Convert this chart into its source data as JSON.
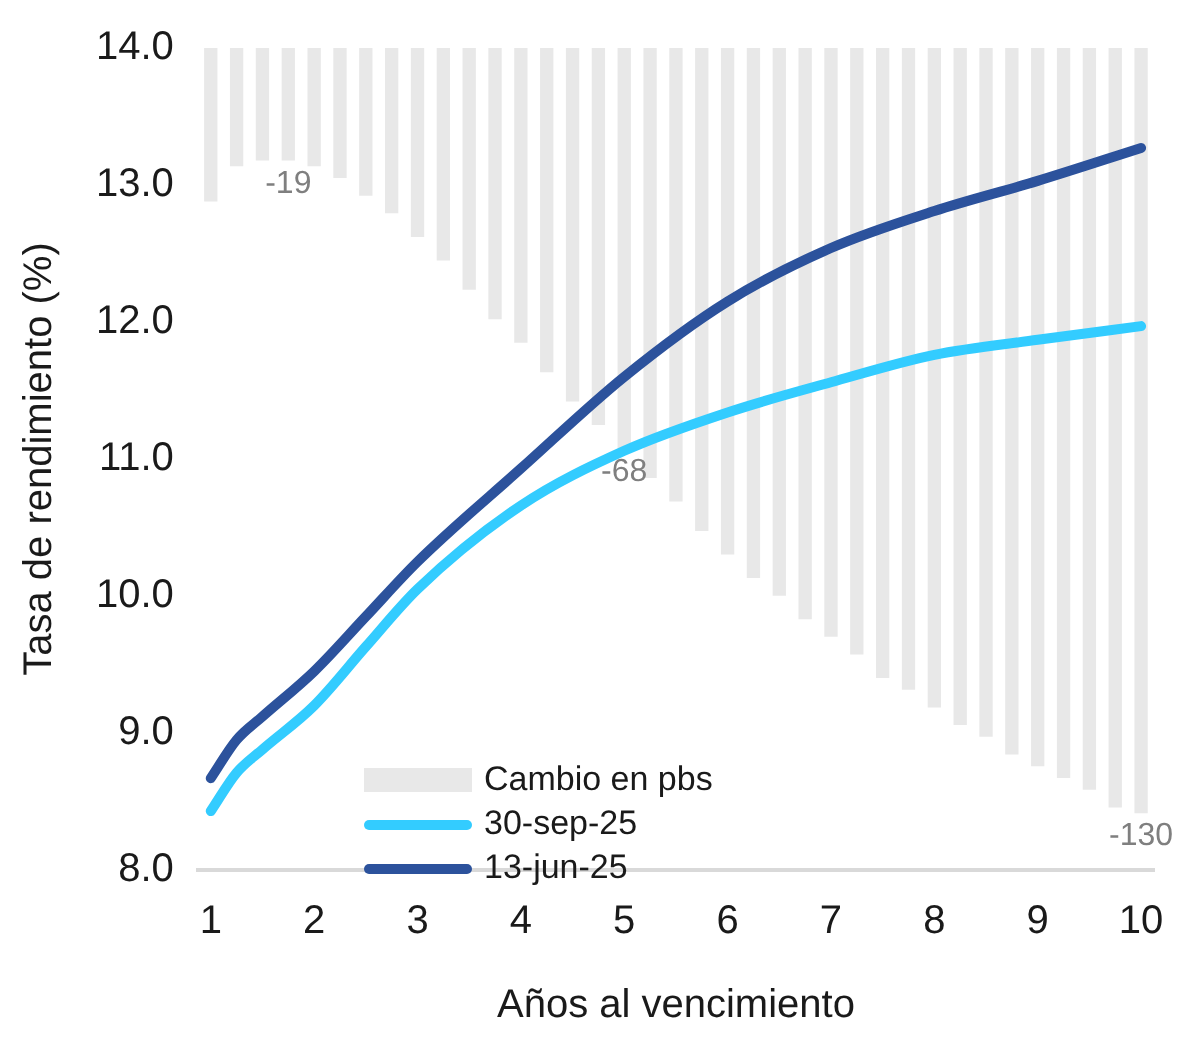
{
  "chart_data": {
    "type": "line",
    "xlabel": "Años al vencimiento",
    "ylabel": "Tasa de rendimiento (%)",
    "xlim": [
      0.875,
      10.125
    ],
    "xticks": [
      1,
      2,
      3,
      4,
      5,
      6,
      7,
      8,
      9,
      10
    ],
    "ylim": [
      8,
      14
    ],
    "yticks": [
      {
        "value": 8,
        "label": "8.0"
      },
      {
        "value": 9,
        "label": "9.0"
      },
      {
        "value": 10,
        "label": "10.0"
      },
      {
        "value": 11,
        "label": "11.0"
      },
      {
        "value": 12,
        "label": "12.0"
      },
      {
        "value": 13,
        "label": "13.0"
      },
      {
        "value": 14,
        "label": "14.0"
      }
    ],
    "grid": false,
    "legend": "bottom left",
    "series": [
      {
        "name": "Cambio en pbs",
        "type": "bar",
        "axis": "y2",
        "color": "#e8e8e8",
        "x": [
          1,
          1.25,
          1.5,
          1.75,
          2,
          2.25,
          2.5,
          2.75,
          3,
          3.25,
          3.5,
          3.75,
          4,
          4.25,
          4.5,
          4.75,
          5,
          5.25,
          5.5,
          5.75,
          6,
          6.25,
          6.5,
          6.75,
          7,
          7.25,
          7.5,
          7.75,
          8,
          8.25,
          8.5,
          8.75,
          9,
          9.25,
          9.5,
          9.75,
          10
        ],
        "values": [
          -26,
          -20,
          -19,
          -19,
          -20,
          -22,
          -25,
          -28,
          -32,
          -36,
          -41,
          -46,
          -50,
          -55,
          -60,
          -64,
          -68,
          -73,
          -77,
          -82,
          -86,
          -90,
          -93,
          -97,
          -100,
          -103,
          -107,
          -109,
          -112,
          -115,
          -117,
          -120,
          -122,
          -124,
          -126,
          -129,
          -130
        ],
        "value_labels": [
          null,
          null,
          null,
          "-19",
          null,
          null,
          null,
          null,
          null,
          null,
          null,
          null,
          null,
          null,
          null,
          null,
          "-68",
          null,
          null,
          null,
          null,
          null,
          null,
          null,
          null,
          null,
          null,
          null,
          null,
          null,
          null,
          null,
          null,
          null,
          null,
          null,
          "-130"
        ]
      },
      {
        "name": "30-sep-25",
        "color": "#33ccff",
        "x": [
          1,
          1.25,
          1.5,
          2,
          2.5,
          3,
          4,
          5,
          6,
          7,
          8,
          9,
          10
        ],
        "values": [
          8.43,
          8.71,
          8.88,
          9.2,
          9.63,
          10.05,
          10.66,
          11.06,
          11.34,
          11.56,
          11.76,
          11.87,
          11.97
        ]
      },
      {
        "name": "13-jun-25",
        "color": "#2c529c",
        "x": [
          1,
          1.25,
          1.5,
          2,
          2.5,
          3,
          4,
          5,
          6,
          7,
          8,
          9,
          10
        ],
        "values": [
          8.67,
          8.95,
          9.12,
          9.45,
          9.85,
          10.25,
          10.93,
          11.6,
          12.15,
          12.54,
          12.81,
          13.03,
          13.27
        ]
      }
    ]
  }
}
